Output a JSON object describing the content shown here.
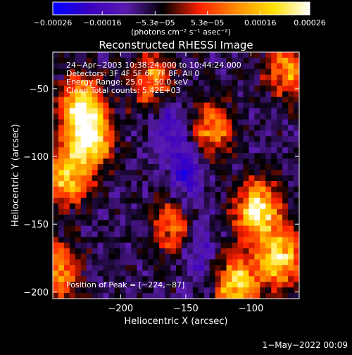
{
  "chart_data": {
    "type": "heatmap",
    "title": "Reconstructed RHESSI Image",
    "xlabel": "Heliocentric X (arcsec)",
    "ylabel": "Heliocentric Y (arcsec)",
    "xlim": [
      -252,
      -63
    ],
    "ylim": [
      -205,
      -23
    ],
    "x_ticks": [
      -200,
      -150,
      -100
    ],
    "x_tick_labels": [
      "−200",
      "−150",
      "−100"
    ],
    "y_ticks": [
      -50,
      -100,
      -150,
      -200
    ],
    "y_tick_labels": [
      "−50",
      "−100",
      "−150",
      "−200"
    ],
    "colorbar": {
      "range": [
        -0.00026,
        0.00026
      ],
      "ticks": [
        -0.00026,
        -0.00016,
        -5.3e-05,
        5.3e-05,
        0.00016,
        0.00026
      ],
      "tick_labels": [
        "−0.00026",
        "−0.00016",
        "−5.3e−05",
        "5.3e−05",
        "0.00016",
        "0.00026"
      ],
      "unit_label": "(photons cm⁻² s⁻¹ asec⁻²)",
      "colormap": [
        "#0000ff",
        "#3a00c0",
        "#5a1cae",
        "#000000",
        "#ff2000",
        "#ff8c00",
        "#ffe000",
        "#ffffff"
      ]
    },
    "annotations": [
      "24−Apr−2003 10:38:24.000 to 10:44:24.000",
      "Detectors: 3F 4F 5F 6F 7F 8F, All 0",
      "Energy Range: 25.0 − 50.0 keV",
      "Clean     Total counts: 5.42E+03"
    ],
    "peak_label": "Position of Peak = [−224,−87]",
    "peak": [
      -224,
      -87
    ],
    "grid": false,
    "hotspots": [
      {
        "x": -224,
        "y": -87,
        "strength": 1.0
      },
      {
        "x": -230,
        "y": -62,
        "strength": 0.8
      },
      {
        "x": -240,
        "y": -115,
        "strength": 0.75
      },
      {
        "x": -95,
        "y": -140,
        "strength": 0.95
      },
      {
        "x": -78,
        "y": -175,
        "strength": 0.9
      },
      {
        "x": -110,
        "y": -195,
        "strength": 0.85
      },
      {
        "x": -175,
        "y": -45,
        "strength": 0.6
      },
      {
        "x": -130,
        "y": -80,
        "strength": 0.55
      },
      {
        "x": -72,
        "y": -35,
        "strength": 0.6
      },
      {
        "x": -160,
        "y": -150,
        "strength": 0.5
      },
      {
        "x": -248,
        "y": -185,
        "strength": 0.6
      }
    ],
    "coldspots": [
      {
        "x": -150,
        "y": -110,
        "strength": 0.9
      },
      {
        "x": -165,
        "y": -70,
        "strength": 0.6
      },
      {
        "x": -140,
        "y": -170,
        "strength": 0.55
      }
    ]
  },
  "footer": {
    "timestamp": "1−May−2022 00:09"
  }
}
